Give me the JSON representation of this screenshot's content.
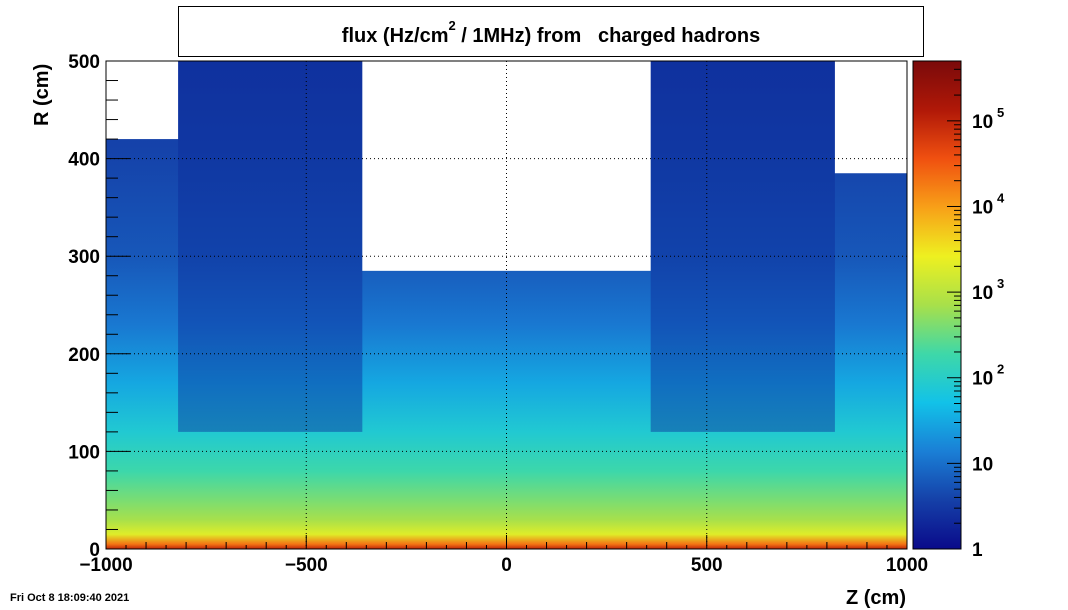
{
  "header": {
    "title_pre": "flux (Hz/cm",
    "title_sup": "2",
    "title_post": " / 1MHz) from   charged hadrons"
  },
  "footer": {
    "timestamp": "Fri Oct  8 18:09:40 2021"
  },
  "chart_data": {
    "type": "heatmap",
    "title": "flux (Hz/cm^2 / 1MHz) from   charged hadrons",
    "xlabel": "Z (cm)",
    "ylabel": "R (cm)",
    "xlim": [
      -1000,
      1000
    ],
    "ylim": [
      0,
      500
    ],
    "x_ticks": [
      -1000,
      -500,
      0,
      500,
      1000
    ],
    "x_tick_labels": [
      "−1000",
      "−500",
      "0",
      "500",
      "1000"
    ],
    "y_ticks": [
      0,
      100,
      200,
      300,
      400,
      500
    ],
    "y_tick_labels": [
      "0",
      "100",
      "200",
      "300",
      "400",
      "500"
    ],
    "grid": true,
    "color_scale": {
      "type": "log",
      "range": [
        1,
        500000
      ],
      "ticks": [
        1,
        10,
        100,
        1000,
        10000,
        100000
      ],
      "labels": [
        {
          "base": "1",
          "exp": ""
        },
        {
          "base": "10",
          "exp": ""
        },
        {
          "base": "10",
          "exp": "2"
        },
        {
          "base": "10",
          "exp": "3"
        },
        {
          "base": "10",
          "exp": "4"
        },
        {
          "base": "10",
          "exp": "5"
        }
      ],
      "colors": [
        "#0a0a8a",
        "#1540a8",
        "#1a7fd6",
        "#12c2e8",
        "#3ed8a8",
        "#a8e04a",
        "#eef020",
        "#f8a018",
        "#f05010",
        "#b01808",
        "#7a0a0a"
      ]
    },
    "regions": {
      "empty_corner_r_min": 420,
      "endcap_z_inner": 360,
      "endcap_z_outer": 820,
      "barrel_empty_r_min": 285,
      "forward_empty_r_min": 385
    },
    "profile": {
      "r": [
        0,
        5,
        15,
        30,
        50,
        80,
        120,
        170,
        230,
        300,
        400,
        500
      ],
      "flux": [
        100000,
        20000,
        2000,
        700,
        400,
        180,
        80,
        30,
        12,
        6,
        4,
        3
      ]
    }
  }
}
